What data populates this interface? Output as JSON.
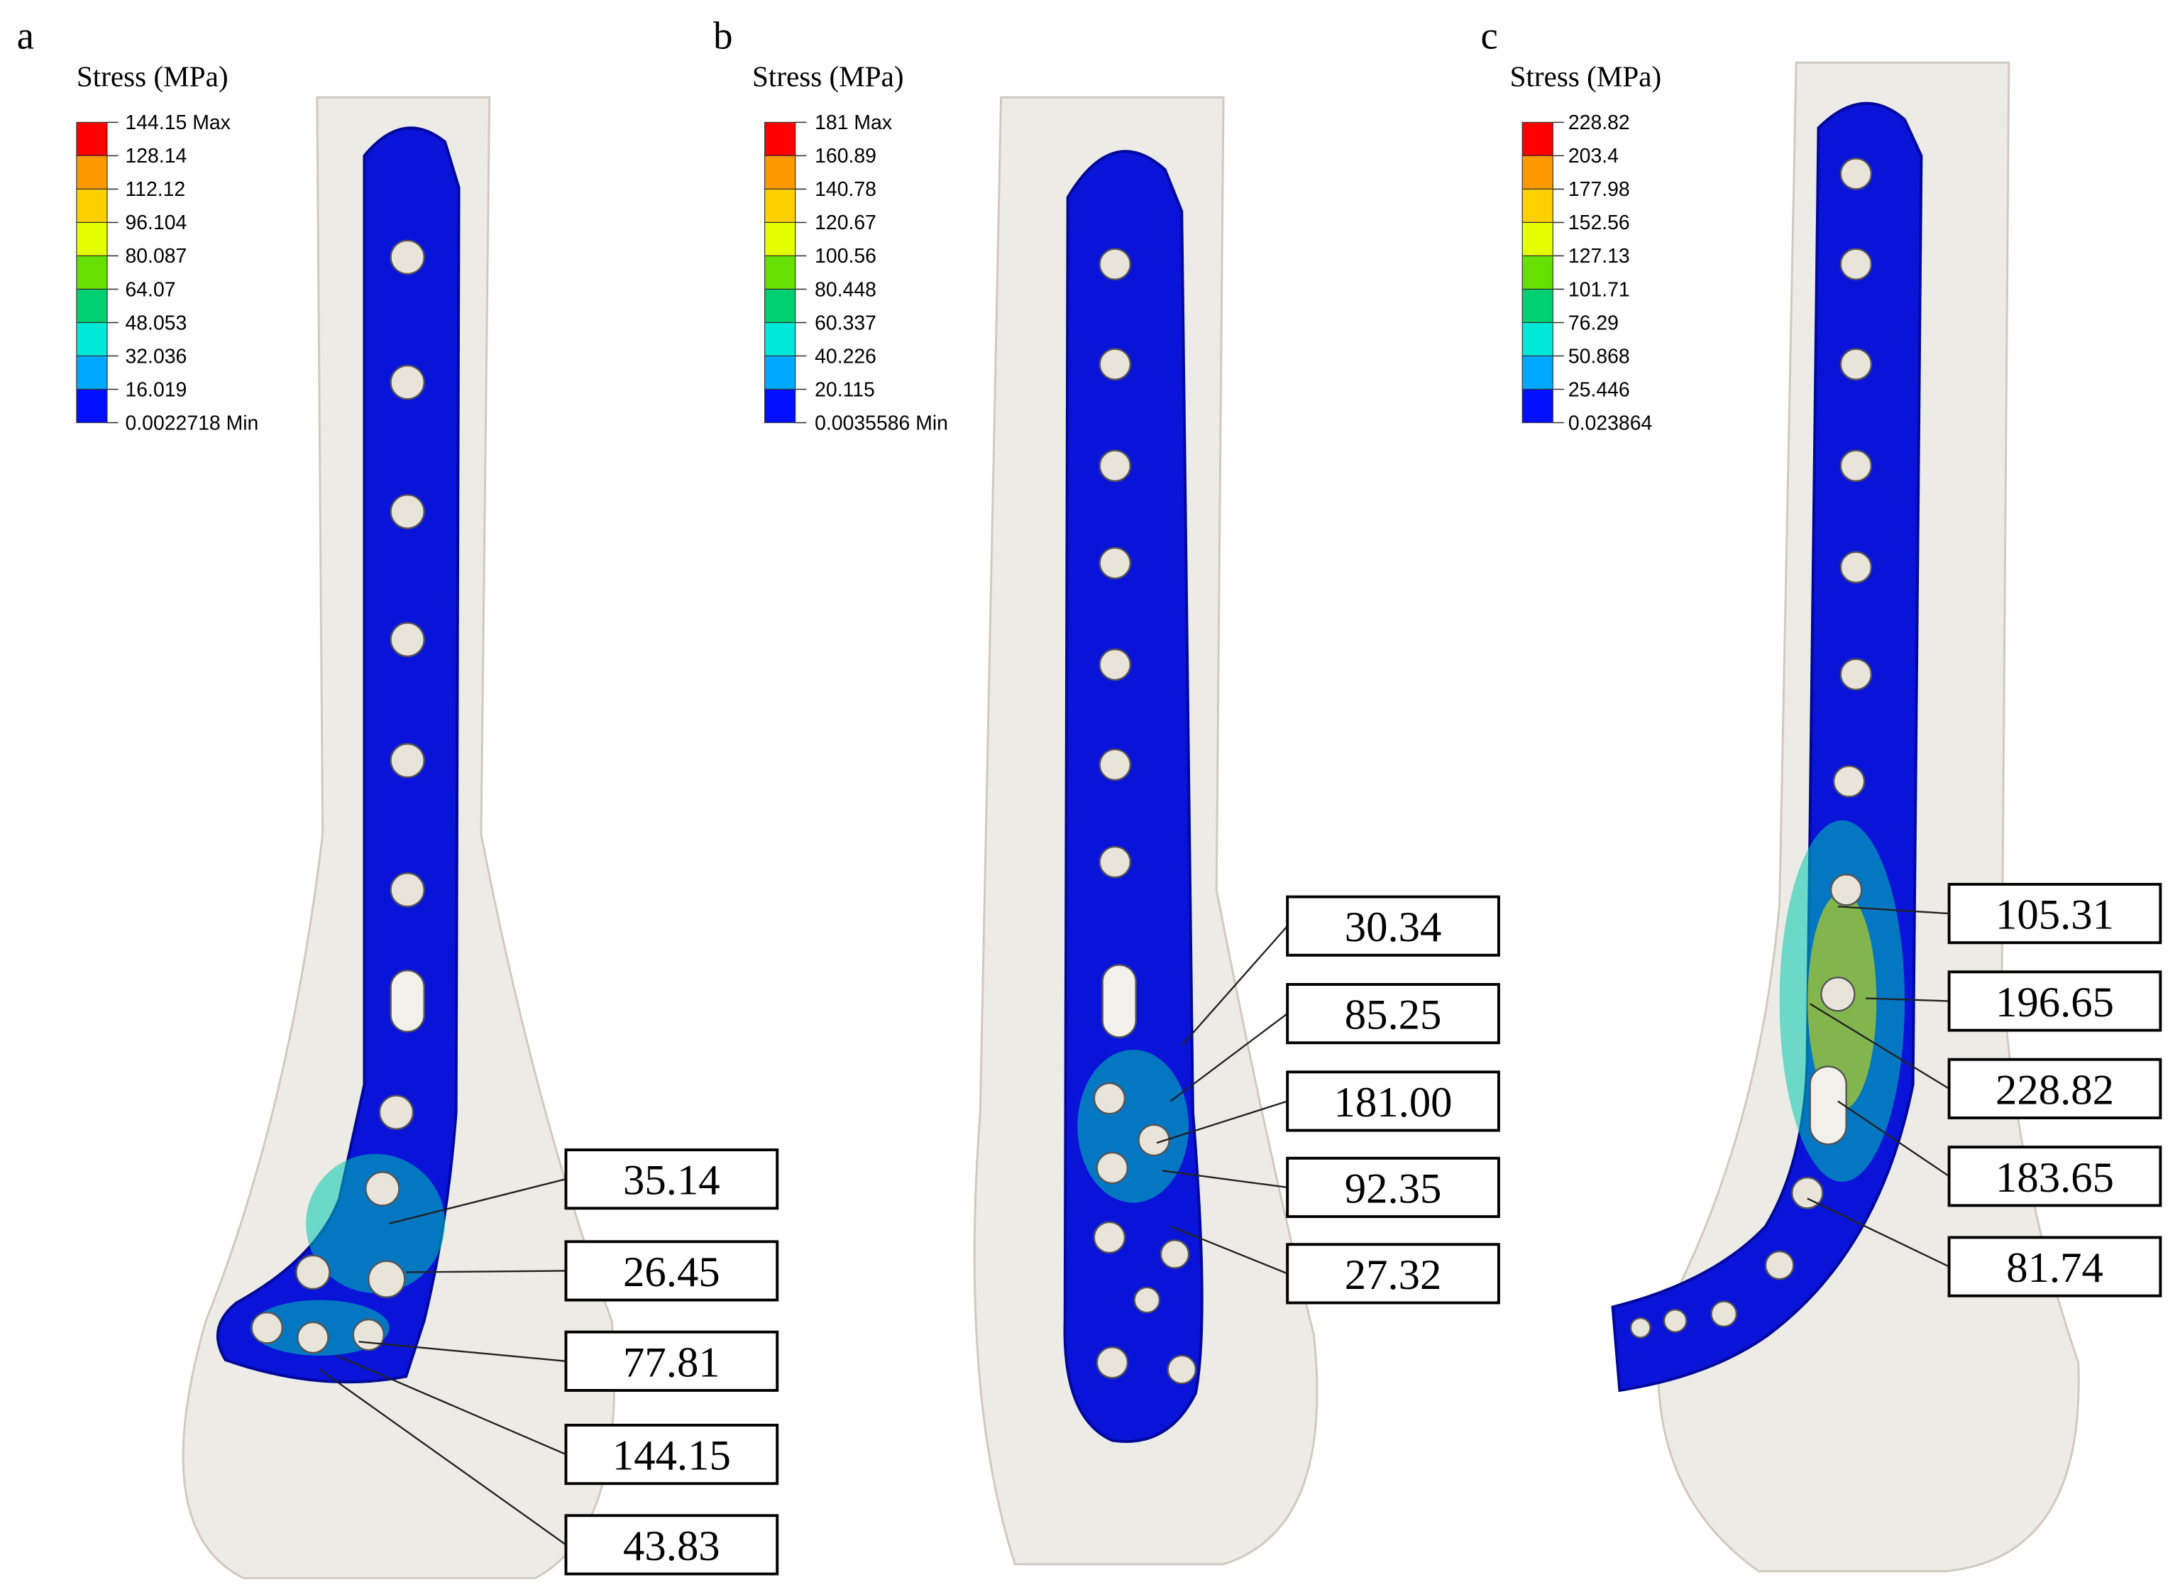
{
  "panels": [
    {
      "label": "a",
      "legend": {
        "title": "Stress (MPa)",
        "levels": [
          "144.15 Max",
          "128.14",
          "112.12",
          "96.104",
          "80.087",
          "64.07",
          "48.053",
          "32.036",
          "16.019",
          "0.0022718 Min"
        ]
      },
      "callouts": [
        "35.14",
        "26.45",
        "77.81",
        "144.15",
        "43.83"
      ]
    },
    {
      "label": "b",
      "legend": {
        "title": "Stress (MPa)",
        "levels": [
          "181 Max",
          "160.89",
          "140.78",
          "120.67",
          "100.56",
          "80.448",
          "60.337",
          "40.226",
          "20.115",
          "0.0035586 Min"
        ]
      },
      "callouts": [
        "30.34",
        "85.25",
        "181.00",
        "92.35",
        "27.32"
      ]
    },
    {
      "label": "c",
      "legend": {
        "title": "Stress (MPa)",
        "levels": [
          "228.82",
          "203.4",
          "177.98",
          "152.56",
          "127.13",
          "101.71",
          "76.29",
          "50.868",
          "25.446",
          "0.023864"
        ]
      },
      "callouts": [
        "105.31",
        "196.65",
        "228.82",
        "183.65",
        "81.74"
      ]
    }
  ]
}
